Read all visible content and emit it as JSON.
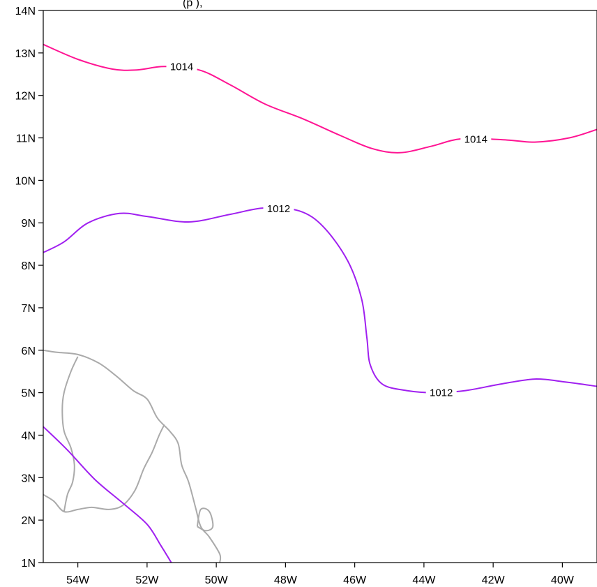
{
  "title_fragment": "(p                ),",
  "map": {
    "lon_range": [
      -55,
      -39
    ],
    "lat_range": [
      1,
      14
    ],
    "x_ticks": [
      {
        "lon": -54,
        "label": "54W"
      },
      {
        "lon": -52,
        "label": "52W"
      },
      {
        "lon": -50,
        "label": "50W"
      },
      {
        "lon": -48,
        "label": "48W"
      },
      {
        "lon": -46,
        "label": "46W"
      },
      {
        "lon": -44,
        "label": "44W"
      },
      {
        "lon": -42,
        "label": "42W"
      },
      {
        "lon": -40,
        "label": "40W"
      }
    ],
    "y_ticks": [
      {
        "lat": 1,
        "label": "1N"
      },
      {
        "lat": 2,
        "label": "2N"
      },
      {
        "lat": 3,
        "label": "3N"
      },
      {
        "lat": 4,
        "label": "4N"
      },
      {
        "lat": 5,
        "label": "5N"
      },
      {
        "lat": 6,
        "label": "6N"
      },
      {
        "lat": 7,
        "label": "7N"
      },
      {
        "lat": 8,
        "label": "8N"
      },
      {
        "lat": 9,
        "label": "9N"
      },
      {
        "lat": 10,
        "label": "10N"
      },
      {
        "lat": 11,
        "label": "11N"
      },
      {
        "lat": 12,
        "label": "12N"
      },
      {
        "lat": 13,
        "label": "13N"
      },
      {
        "lat": 14,
        "label": "14N"
      }
    ],
    "contours": [
      {
        "level": "1014",
        "color": "#ff1493",
        "points": [
          [
            -55,
            13.2
          ],
          [
            -54.0,
            12.85
          ],
          [
            -53.0,
            12.62
          ],
          [
            -52.3,
            12.6
          ],
          [
            -51.5,
            12.68
          ],
          [
            -50.5,
            12.6
          ],
          [
            -49.6,
            12.25
          ],
          [
            -48.6,
            11.8
          ],
          [
            -47.5,
            11.45
          ],
          [
            -46.4,
            11.05
          ],
          [
            -45.5,
            10.75
          ],
          [
            -44.7,
            10.65
          ],
          [
            -43.8,
            10.8
          ],
          [
            -42.9,
            10.98
          ],
          [
            -41.6,
            10.95
          ],
          [
            -40.8,
            10.9
          ],
          [
            -39.8,
            11.0
          ],
          [
            -39,
            11.2
          ]
        ],
        "labels": [
          {
            "text": "1014",
            "lon": -51.0,
            "lat": 12.68
          },
          {
            "text": "1014",
            "lon": -42.5,
            "lat": 10.97
          }
        ]
      },
      {
        "level": "1012",
        "color": "#a020f0",
        "points": [
          [
            -55,
            8.3
          ],
          [
            -54.4,
            8.55
          ],
          [
            -53.7,
            9.0
          ],
          [
            -52.8,
            9.22
          ],
          [
            -52.0,
            9.15
          ],
          [
            -50.8,
            9.02
          ],
          [
            -49.6,
            9.2
          ],
          [
            -48.6,
            9.35
          ],
          [
            -47.6,
            9.28
          ],
          [
            -46.9,
            8.9
          ],
          [
            -46.2,
            8.1
          ],
          [
            -45.8,
            7.2
          ],
          [
            -45.65,
            6.3
          ],
          [
            -45.55,
            5.65
          ],
          [
            -45.2,
            5.2
          ],
          [
            -44.5,
            5.05
          ],
          [
            -43.7,
            5.0
          ],
          [
            -42.8,
            5.05
          ],
          [
            -41.8,
            5.2
          ],
          [
            -40.8,
            5.32
          ],
          [
            -39.9,
            5.25
          ],
          [
            -39,
            5.15
          ]
        ],
        "labels": [
          {
            "text": "1012",
            "lon": -48.2,
            "lat": 9.33
          },
          {
            "text": "1012",
            "lon": -43.5,
            "lat": 5.0
          }
        ]
      },
      {
        "level": "",
        "color": "#a020f0",
        "points": [
          [
            -55,
            4.2
          ],
          [
            -54.3,
            3.65
          ],
          [
            -53.5,
            2.95
          ],
          [
            -52.7,
            2.4
          ],
          [
            -52.0,
            1.9
          ],
          [
            -51.6,
            1.4
          ],
          [
            -51.3,
            1
          ]
        ],
        "labels": []
      }
    ],
    "coastline_color": "#aaaaaa",
    "coastlines": [
      [
        [
          -55,
          6.0
        ],
        [
          -54.6,
          5.95
        ],
        [
          -54.0,
          5.9
        ],
        [
          -53.4,
          5.7
        ],
        [
          -52.9,
          5.4
        ],
        [
          -52.4,
          5.05
        ],
        [
          -52.0,
          4.85
        ],
        [
          -51.7,
          4.4
        ],
        [
          -51.35,
          4.1
        ],
        [
          -51.1,
          3.8
        ],
        [
          -51.0,
          3.3
        ],
        [
          -50.8,
          2.9
        ],
        [
          -50.6,
          2.3
        ],
        [
          -50.45,
          1.85
        ],
        [
          -50.2,
          1.6
        ],
        [
          -49.9,
          1.2
        ],
        [
          -49.9,
          1
        ]
      ],
      [
        [
          -54.0,
          5.85
        ],
        [
          -54.2,
          5.5
        ],
        [
          -54.4,
          5.0
        ],
        [
          -54.45,
          4.6
        ],
        [
          -54.4,
          4.1
        ],
        [
          -54.2,
          3.7
        ],
        [
          -54.1,
          3.3
        ],
        [
          -54.15,
          2.9
        ],
        [
          -54.3,
          2.6
        ],
        [
          -54.4,
          2.2
        ]
      ],
      [
        [
          -55,
          2.6
        ],
        [
          -54.7,
          2.45
        ],
        [
          -54.4,
          2.2
        ],
        [
          -54.0,
          2.25
        ],
        [
          -53.6,
          2.3
        ],
        [
          -53.1,
          2.25
        ],
        [
          -52.7,
          2.35
        ],
        [
          -52.35,
          2.7
        ],
        [
          -52.1,
          3.2
        ],
        [
          -51.85,
          3.6
        ],
        [
          -51.65,
          4.0
        ],
        [
          -51.5,
          4.25
        ]
      ],
      [
        [
          -50.55,
          1.85
        ],
        [
          -50.3,
          1.75
        ],
        [
          -50.1,
          1.85
        ],
        [
          -50.2,
          2.2
        ],
        [
          -50.45,
          2.25
        ],
        [
          -50.55,
          1.85
        ]
      ]
    ]
  }
}
